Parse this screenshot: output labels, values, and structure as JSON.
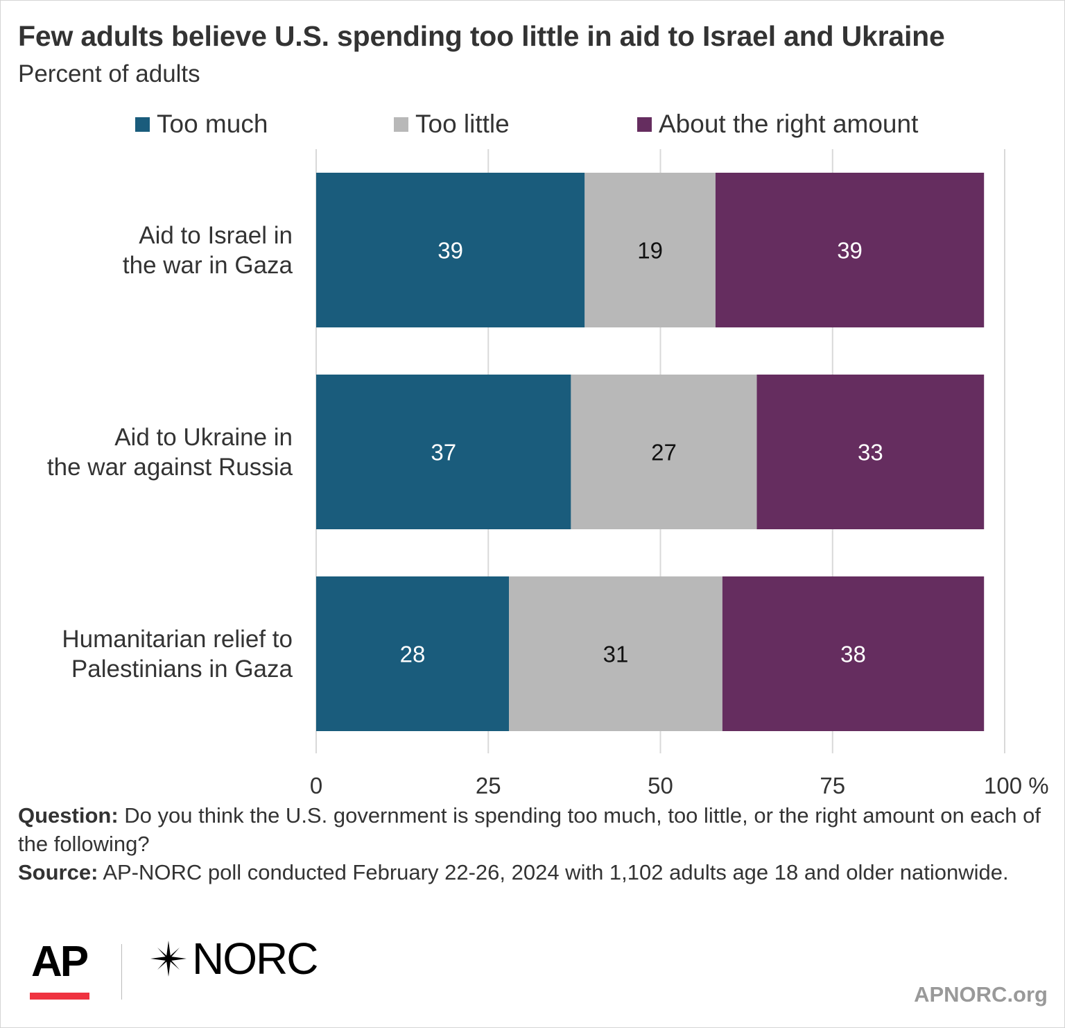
{
  "header": {
    "title": "Few adults believe U.S. spending too little in aid to Israel and Ukraine",
    "subtitle": "Percent of adults"
  },
  "chart_data": {
    "type": "bar",
    "orientation": "horizontal",
    "stacked": true,
    "categories": [
      [
        "Aid to Israel in",
        "the war in Gaza"
      ],
      [
        "Aid to Ukraine in",
        "the war against Russia"
      ],
      [
        "Humanitarian relief to",
        "Palestinians in Gaza"
      ]
    ],
    "series": [
      {
        "name": "Too much",
        "color": "#1a5c7c",
        "label_color": "#ffffff",
        "values": [
          39,
          37,
          28
        ]
      },
      {
        "name": "Too little",
        "color": "#b8b8b8",
        "label_color": "#111111",
        "values": [
          19,
          27,
          31
        ]
      },
      {
        "name": "About the right amount",
        "color": "#652d5f",
        "label_color": "#ffffff",
        "values": [
          39,
          33,
          38
        ]
      }
    ],
    "x_ticks": [
      "0",
      "25",
      "50",
      "75",
      "100 %"
    ],
    "x_tick_values": [
      0,
      25,
      50,
      75,
      100
    ],
    "xlim": [
      0,
      100
    ],
    "grid": true,
    "legend_position": "top"
  },
  "footer": {
    "question_label": "Question:",
    "question_text": "Do you think the U.S. government is spending too much, too little, or the right amount on each of the following?",
    "source_label": "Source:",
    "source_text": "AP-NORC poll conducted February 22-26, 2024 with 1,102 adults age 18 and older nationwide."
  },
  "branding": {
    "ap_logo": "AP",
    "norc_logo": "NORC",
    "norc_mark_icon": "star-burst-icon",
    "site": "APNORC.org",
    "ap_accent": "#ef3340"
  }
}
